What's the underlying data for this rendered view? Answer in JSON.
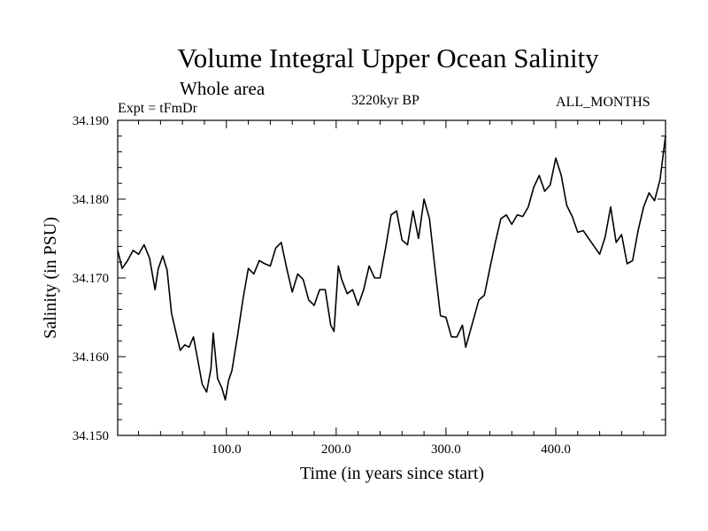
{
  "header": {
    "title": "Volume Integral Upper Ocean Salinity",
    "subtitle": "Whole area",
    "expt": "Expt = tFmDr",
    "period": "3220kyr BP",
    "months": "ALL_MONTHS"
  },
  "chart_data": {
    "type": "line",
    "title": "Volume Integral Upper Ocean Salinity",
    "xlabel": "Time (in years since start)",
    "ylabel": "Salinity (in PSU)",
    "xlim": [
      1,
      500
    ],
    "ylim": [
      34.15,
      34.19
    ],
    "xticks": [
      100,
      200,
      300,
      400
    ],
    "xtick_labels": [
      "100.0",
      "200.0",
      "300.0",
      "400.0"
    ],
    "yticks": [
      34.15,
      34.16,
      34.17,
      34.18,
      34.19
    ],
    "ytick_labels": [
      "34.150",
      "34.160",
      "34.170",
      "34.180",
      "34.190"
    ],
    "grid": false,
    "series": [
      {
        "name": "salinity",
        "x": [
          1,
          5,
          10,
          15,
          20,
          25,
          30,
          35,
          38,
          42,
          46,
          50,
          55,
          58,
          62,
          66,
          70,
          74,
          78,
          82,
          86,
          88,
          92,
          96,
          99,
          102,
          105,
          110,
          115,
          120,
          125,
          130,
          135,
          140,
          145,
          150,
          155,
          160,
          165,
          170,
          175,
          180,
          185,
          190,
          195,
          198,
          202,
          205,
          210,
          215,
          220,
          225,
          230,
          235,
          240,
          245,
          250,
          255,
          260,
          265,
          270,
          275,
          280,
          285,
          290,
          295,
          300,
          305,
          310,
          315,
          318,
          322,
          326,
          330,
          335,
          340,
          345,
          350,
          355,
          360,
          365,
          370,
          375,
          380,
          385,
          390,
          395,
          400,
          405,
          410,
          415,
          420,
          425,
          430,
          435,
          440,
          445,
          450,
          455,
          460,
          465,
          470,
          475,
          480,
          485,
          490,
          495,
          500
        ],
        "y": [
          34.1735,
          34.1712,
          34.1722,
          34.1735,
          34.173,
          34.1742,
          34.1725,
          34.1685,
          34.1712,
          34.1728,
          34.171,
          34.1655,
          34.1625,
          34.1608,
          34.1615,
          34.1612,
          34.1625,
          34.1595,
          34.1565,
          34.1555,
          34.1585,
          34.163,
          34.1572,
          34.156,
          34.1545,
          34.157,
          34.1582,
          34.1625,
          34.1672,
          34.1712,
          34.1705,
          34.1722,
          34.1718,
          34.1715,
          34.1738,
          34.1745,
          34.1712,
          34.1682,
          34.1705,
          34.1698,
          34.1672,
          34.1665,
          34.1685,
          34.1685,
          34.164,
          34.1632,
          34.1715,
          34.1698,
          34.168,
          34.1685,
          34.1665,
          34.1685,
          34.1715,
          34.17,
          34.17,
          34.1738,
          34.178,
          34.1785,
          34.1748,
          34.1742,
          34.1785,
          34.175,
          34.18,
          34.1775,
          34.1712,
          34.1652,
          34.165,
          34.1625,
          34.1625,
          34.164,
          34.1612,
          34.1632,
          34.1652,
          34.1672,
          34.1678,
          34.1712,
          34.1745,
          34.1775,
          34.178,
          34.1768,
          34.178,
          34.1778,
          34.179,
          34.1815,
          34.183,
          34.181,
          34.1818,
          34.1852,
          34.183,
          34.1792,
          34.1778,
          34.1758,
          34.176,
          34.175,
          34.174,
          34.173,
          34.1752,
          34.179,
          34.1745,
          34.1755,
          34.1718,
          34.1722,
          34.176,
          34.179,
          34.1808,
          34.1798,
          34.1825,
          34.188
        ]
      }
    ]
  }
}
